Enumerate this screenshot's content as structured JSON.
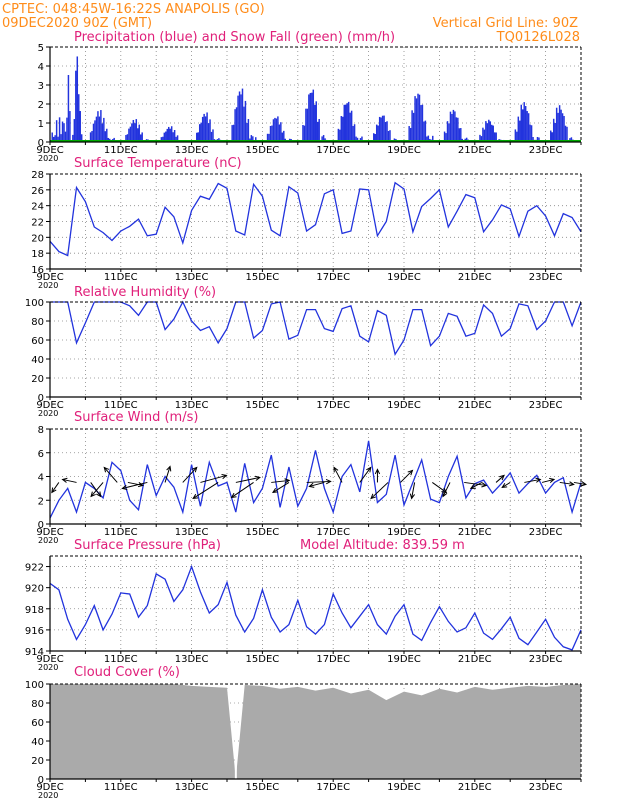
{
  "header": {
    "left_line1": "CPTEC:   048:45W-16:22S   ANAPOLIS (GO)",
    "left_line2": "09DEC2020 90Z (GMT)",
    "right_line1": "Vertical Grid Line: 90Z",
    "right_line2": "TQ0126L028"
  },
  "year_label": "2020",
  "colors": {
    "blue": "#2233dd",
    "green": "#00aa00",
    "title": "#e0207a",
    "header": "#ff8c1a",
    "cloud": "#aaaaaa"
  },
  "chart_data": [
    {
      "type": "bar",
      "title": "Precipitation (blue) and Snow Fall (green) (mm/h)",
      "x_ticks": [
        "9DEC",
        "11DEC",
        "13DEC",
        "15DEC",
        "17DEC",
        "19DEC",
        "21DEC",
        "23DEC"
      ],
      "ylim": [
        0,
        5
      ],
      "y_ticks": [
        0,
        1,
        2,
        3,
        4,
        5
      ],
      "grid": true,
      "daily_peak_mm_h": [
        1.3,
        5.0,
        1.8,
        1.3,
        0.9,
        1.7,
        3.1,
        1.5,
        3.1,
        2.4,
        1.6,
        2.9,
        1.9,
        1.3,
        2.3,
        2.1,
        1.2
      ],
      "snow_values": "all 0"
    },
    {
      "type": "line",
      "title": "Surface Temperature (nC)",
      "x_ticks": [
        "9DEC",
        "11DEC",
        "13DEC",
        "15DEC",
        "17DEC",
        "19DEC",
        "21DEC",
        "23DEC"
      ],
      "ylim": [
        16,
        28
      ],
      "y_ticks": [
        16,
        18,
        20,
        22,
        24,
        26,
        28
      ],
      "grid": true,
      "x_days": [
        0,
        0.25,
        0.5,
        0.75,
        1.0,
        1.25,
        1.5,
        1.75,
        2.0,
        2.25,
        2.5,
        2.75,
        3.0,
        3.25,
        3.5,
        3.75,
        4.0,
        4.25,
        4.5,
        4.75,
        5.0,
        5.25,
        5.5,
        5.75,
        6.0,
        6.25,
        6.5,
        6.75,
        7.0,
        7.25,
        7.5,
        7.75,
        8.0,
        8.25,
        8.5,
        8.75,
        9.0,
        9.25,
        9.5,
        9.75,
        10.0,
        10.25,
        10.5,
        10.75,
        11.0,
        11.25,
        11.5,
        11.75,
        12.0,
        12.25,
        12.5,
        12.75,
        13.0,
        13.25,
        13.5,
        13.75,
        14.0,
        14.25,
        14.5,
        14.75,
        15.0
      ],
      "values": [
        19.5,
        18.2,
        17.7,
        26.3,
        24.5,
        21.3,
        20.6,
        19.6,
        20.8,
        21.4,
        22.3,
        20.2,
        20.4,
        23.8,
        22.6,
        19.3,
        23.4,
        25.2,
        24.8,
        26.8,
        26.2,
        20.8,
        20.3,
        26.7,
        25.2,
        20.9,
        20.2,
        26.4,
        25.6,
        20.8,
        21.6,
        25.5,
        26.0,
        20.5,
        20.8,
        26.1,
        26.0,
        20.2,
        22.0,
        26.9,
        26.1,
        20.7,
        23.9,
        24.9,
        26.0,
        21.3,
        23.3,
        25.4,
        25.0,
        20.7,
        22.2,
        24.1,
        23.6,
        20.1,
        23.3,
        24.0,
        22.7,
        20.2,
        23.0,
        22.5,
        20.7
      ]
    },
    {
      "type": "line",
      "title": "Relative Humidity (%)",
      "x_ticks": [
        "9DEC",
        "11DEC",
        "13DEC",
        "15DEC",
        "17DEC",
        "19DEC",
        "21DEC",
        "23DEC"
      ],
      "ylim": [
        0,
        100
      ],
      "y_ticks": [
        0,
        20,
        40,
        60,
        80,
        100
      ],
      "grid": true,
      "x_days": [
        0,
        0.25,
        0.5,
        0.75,
        1.0,
        1.25,
        1.5,
        1.75,
        2.0,
        2.25,
        2.5,
        2.75,
        3.0,
        3.25,
        3.5,
        3.75,
        4.0,
        4.25,
        4.5,
        4.75,
        5.0,
        5.25,
        5.5,
        5.75,
        6.0,
        6.25,
        6.5,
        6.75,
        7.0,
        7.25,
        7.5,
        7.75,
        8.0,
        8.25,
        8.5,
        8.75,
        9.0,
        9.25,
        9.5,
        9.75,
        10.0,
        10.25,
        10.5,
        10.75,
        11.0,
        11.25,
        11.5,
        11.75,
        12.0,
        12.25,
        12.5,
        12.75,
        13.0,
        13.25,
        13.5,
        13.75,
        14.0,
        14.25,
        14.5,
        14.75,
        15.0
      ],
      "values": [
        100,
        100,
        100,
        57,
        78,
        100,
        100,
        100,
        100,
        96,
        86,
        100,
        100,
        71,
        82,
        100,
        80,
        70,
        74,
        57,
        72,
        100,
        100,
        62,
        70,
        98,
        100,
        61,
        65,
        92,
        92,
        72,
        69,
        93,
        96,
        64,
        58,
        91,
        86,
        45,
        60,
        92,
        92,
        54,
        64,
        88,
        85,
        64,
        67,
        97,
        88,
        64,
        72,
        98,
        96,
        71,
        80,
        100,
        100,
        75,
        100
      ]
    },
    {
      "type": "line",
      "title": "Surface Wind (m/s)",
      "x_ticks": [
        "9DEC",
        "11DEC",
        "13DEC",
        "15DEC",
        "17DEC",
        "19DEC",
        "21DEC",
        "23DEC"
      ],
      "ylim": [
        0,
        8
      ],
      "y_ticks": [
        0,
        2,
        4,
        6,
        8
      ],
      "grid": true,
      "x_days": [
        0,
        0.25,
        0.5,
        0.75,
        1.0,
        1.25,
        1.5,
        1.75,
        2.0,
        2.25,
        2.5,
        2.75,
        3.0,
        3.25,
        3.5,
        3.75,
        4.0,
        4.25,
        4.5,
        4.75,
        5.0,
        5.25,
        5.5,
        5.75,
        6.0,
        6.25,
        6.5,
        6.75,
        7.0,
        7.25,
        7.5,
        7.75,
        8.0,
        8.25,
        8.5,
        8.75,
        9.0,
        9.25,
        9.5,
        9.75,
        10.0,
        10.25,
        10.5,
        10.75,
        11.0,
        11.25,
        11.5,
        11.75,
        12.0,
        12.25,
        12.5,
        12.75,
        13.0,
        13.25,
        13.5,
        13.75,
        14.0,
        14.25,
        14.5,
        14.75,
        15.0
      ],
      "values": [
        0.5,
        2.0,
        3.0,
        1.0,
        3.5,
        3.0,
        2.2,
        5.2,
        4.5,
        2.0,
        1.2,
        5.0,
        2.4,
        4.0,
        3.1,
        1.0,
        5.0,
        1.5,
        5.2,
        3.2,
        3.5,
        1.0,
        5.1,
        1.8,
        3.0,
        5.8,
        1.4,
        4.8,
        1.5,
        3.0,
        6.2,
        3.0,
        1.0,
        4.0,
        5.0,
        2.7,
        7.0,
        1.8,
        2.5,
        5.8,
        1.6,
        3.5,
        5.4,
        2.1,
        1.8,
        4.0,
        5.7,
        2.2,
        3.4,
        3.7,
        2.6,
        3.4,
        4.3,
        2.6,
        3.4,
        4.1,
        2.6,
        3.5,
        3.9,
        1.0,
        3.5
      ],
      "arrows": [
        {
          "day": 0.25,
          "u": -0.7,
          "v": -1.0
        },
        {
          "day": 0.75,
          "u": -1.4,
          "v": 0.3
        },
        {
          "day": 1.15,
          "u": 1.0,
          "v": -1.4
        },
        {
          "day": 1.5,
          "u": -1.2,
          "v": -1.4
        },
        {
          "day": 1.9,
          "u": -1.3,
          "v": 1.5
        },
        {
          "day": 2.2,
          "u": 1.5,
          "v": -0.3
        },
        {
          "day": 2.75,
          "u": -2.5,
          "v": -0.6
        },
        {
          "day": 3.25,
          "u": 0.5,
          "v": 1.6
        },
        {
          "day": 3.75,
          "u": 1.4,
          "v": 1.5
        },
        {
          "day": 4.25,
          "u": 2.6,
          "v": 0.7
        },
        {
          "day": 4.75,
          "u": -2.5,
          "v": -1.6
        },
        {
          "day": 5.25,
          "u": 2.4,
          "v": 0.5
        },
        {
          "day": 5.75,
          "u": -2.2,
          "v": -1.5
        },
        {
          "day": 6.25,
          "u": 1.8,
          "v": 0.2
        },
        {
          "day": 6.75,
          "u": -1.6,
          "v": -1.0
        },
        {
          "day": 7.25,
          "u": 2.4,
          "v": 0.1
        },
        {
          "day": 7.75,
          "u": -1.5,
          "v": -0.4
        },
        {
          "day": 8.25,
          "u": -0.8,
          "v": 1.5
        },
        {
          "day": 8.75,
          "u": 1.1,
          "v": 1.5
        },
        {
          "day": 9.25,
          "u": 0.0,
          "v": 1.3
        },
        {
          "day": 9.55,
          "u": -1.7,
          "v": -1.6
        },
        {
          "day": 9.9,
          "u": 1.2,
          "v": 1.2
        },
        {
          "day": 10.3,
          "u": -0.3,
          "v": -1.6
        },
        {
          "day": 10.8,
          "u": 1.4,
          "v": -1.0
        },
        {
          "day": 11.3,
          "u": -0.7,
          "v": -1.4
        },
        {
          "day": 11.7,
          "u": 2.2,
          "v": -0.3
        },
        {
          "day": 12.2,
          "u": -1.1,
          "v": -0.6
        },
        {
          "day": 12.6,
          "u": 0.8,
          "v": 0.7
        },
        {
          "day": 13.0,
          "u": -0.8,
          "v": -0.5
        },
        {
          "day": 13.4,
          "u": 1.6,
          "v": 0.3
        },
        {
          "day": 13.9,
          "u": 1.2,
          "v": 0.3
        },
        {
          "day": 14.4,
          "u": 1.4,
          "v": -0.2
        },
        {
          "day": 14.8,
          "u": 1.2,
          "v": -0.2
        }
      ]
    },
    {
      "type": "line",
      "title": "Surface Pressure (hPa)",
      "annotation": "Model Altitude: 839.59  m",
      "x_ticks": [
        "9DEC",
        "11DEC",
        "13DEC",
        "15DEC",
        "17DEC",
        "19DEC",
        "21DEC",
        "23DEC"
      ],
      "ylim": [
        914,
        923
      ],
      "y_ticks": [
        914,
        916,
        918,
        920,
        922
      ],
      "grid": true,
      "x_days": [
        0,
        0.25,
        0.5,
        0.75,
        1.0,
        1.25,
        1.5,
        1.75,
        2.0,
        2.25,
        2.5,
        2.75,
        3.0,
        3.25,
        3.5,
        3.75,
        4.0,
        4.25,
        4.5,
        4.75,
        5.0,
        5.25,
        5.5,
        5.75,
        6.0,
        6.25,
        6.5,
        6.75,
        7.0,
        7.25,
        7.5,
        7.75,
        8.0,
        8.25,
        8.5,
        8.75,
        9.0,
        9.25,
        9.5,
        9.75,
        10.0,
        10.25,
        10.5,
        10.75,
        11.0,
        11.25,
        11.5,
        11.75,
        12.0,
        12.25,
        12.5,
        12.75,
        13.0,
        13.25,
        13.5,
        13.75,
        14.0,
        14.25,
        14.5,
        14.75,
        15.0
      ],
      "values": [
        920.4,
        919.8,
        917.0,
        915.1,
        916.5,
        918.3,
        916.0,
        917.5,
        919.5,
        919.4,
        917.2,
        918.3,
        921.3,
        920.8,
        918.7,
        919.8,
        922.0,
        919.6,
        917.6,
        918.4,
        920.5,
        917.4,
        915.8,
        917.1,
        919.8,
        917.2,
        915.8,
        916.5,
        918.8,
        916.3,
        915.6,
        916.5,
        919.4,
        917.6,
        916.2,
        917.3,
        918.4,
        916.5,
        915.6,
        917.3,
        918.4,
        915.6,
        915.0,
        916.7,
        918.2,
        916.8,
        915.8,
        916.2,
        917.6,
        915.7,
        915.1,
        916.1,
        917.2,
        915.2,
        914.6,
        915.8,
        917.0,
        915.3,
        914.4,
        914.1,
        916.0
      ]
    },
    {
      "type": "area",
      "title": "Cloud Cover (%)",
      "x_ticks": [
        "9DEC",
        "11DEC",
        "13DEC",
        "15DEC",
        "17DEC",
        "19DEC",
        "21DEC",
        "23DEC"
      ],
      "ylim": [
        0,
        100
      ],
      "y_ticks": [
        0,
        20,
        40,
        60,
        80,
        100
      ],
      "grid": true,
      "approx_value": 99,
      "x_days": [
        0,
        0.5,
        1.0,
        1.5,
        2.0,
        2.5,
        3.0,
        3.5,
        4.0,
        4.5,
        5.0,
        5.25,
        5.5,
        6.0,
        6.5,
        7.0,
        7.5,
        8.0,
        8.5,
        9.0,
        9.5,
        10.0,
        10.5,
        11.0,
        11.5,
        12.0,
        12.5,
        13.0,
        13.5,
        14.0,
        14.5,
        15.0
      ],
      "values": [
        100,
        100,
        100,
        100,
        100,
        100,
        100,
        100,
        98,
        97,
        96,
        0,
        99,
        98,
        95,
        97,
        93,
        96,
        90,
        94,
        83,
        92,
        88,
        95,
        91,
        97,
        94,
        96,
        98,
        97,
        99,
        100
      ]
    }
  ]
}
